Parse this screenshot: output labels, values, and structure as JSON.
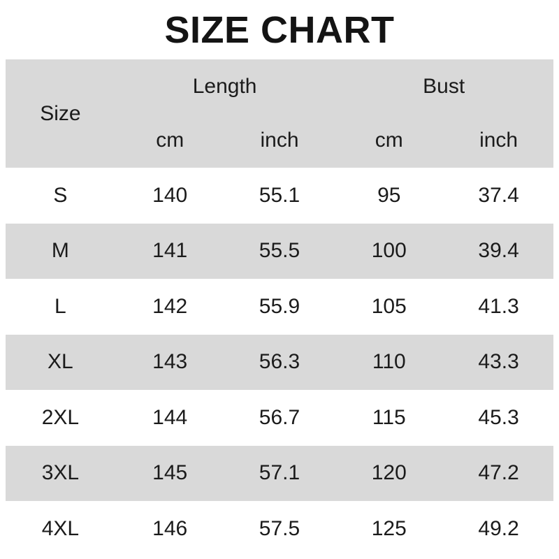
{
  "title": "SIZE CHART",
  "header": {
    "size": "Size",
    "length_group": "Length",
    "bust_group": "Bust",
    "units": [
      "cm",
      "inch",
      "cm",
      "inch"
    ]
  },
  "chart_data": {
    "type": "table",
    "title": "SIZE CHART",
    "column_groups": [
      {
        "label": "Size",
        "columns": [
          "Size"
        ]
      },
      {
        "label": "Length",
        "columns": [
          "cm",
          "inch"
        ]
      },
      {
        "label": "Bust",
        "columns": [
          "cm",
          "inch"
        ]
      }
    ],
    "columns": [
      "Size",
      "Length cm",
      "Length inch",
      "Bust cm",
      "Bust inch"
    ],
    "rows": [
      [
        "S",
        "140",
        "55.1",
        "95",
        "37.4"
      ],
      [
        "M",
        "141",
        "55.5",
        "100",
        "39.4"
      ],
      [
        "L",
        "142",
        "55.9",
        "105",
        "41.3"
      ],
      [
        "XL",
        "143",
        "56.3",
        "110",
        "43.3"
      ],
      [
        "2XL",
        "144",
        "56.7",
        "115",
        "45.3"
      ],
      [
        "3XL",
        "145",
        "57.1",
        "120",
        "47.2"
      ],
      [
        "4XL",
        "146",
        "57.5",
        "125",
        "49.2"
      ]
    ]
  },
  "colors": {
    "background": "#ffffff",
    "row_shade": "#d9d9d9",
    "text": "#1b1b1b",
    "title_text": "#141414"
  }
}
